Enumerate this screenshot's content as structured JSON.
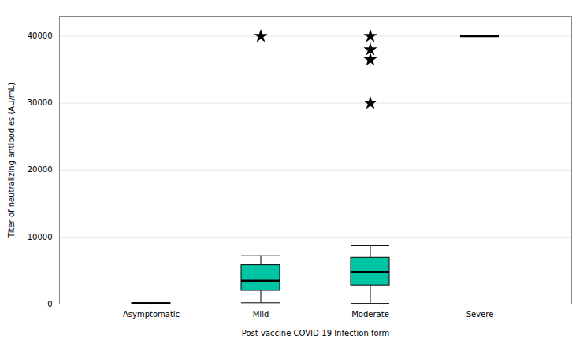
{
  "chart_data": {
    "type": "box",
    "categories": [
      "Asymptomatic",
      "Mild",
      "Moderate",
      "Severe"
    ],
    "boxes": [
      {
        "whislo": 0,
        "q1": 0,
        "med": 100,
        "q3": 150,
        "whishi": 200,
        "fliers": []
      },
      {
        "whislo": 200,
        "q1": 2000,
        "med": 3500,
        "q3": 5800,
        "whishi": 7200,
        "fliers": [
          40000
        ]
      },
      {
        "whislo": 100,
        "q1": 2800,
        "med": 4800,
        "q3": 6900,
        "whishi": 8700,
        "fliers": [
          30000,
          36500,
          38000,
          40000
        ]
      },
      {
        "whislo": 40000,
        "q1": 40000,
        "med": 40000,
        "q3": 40000,
        "whishi": 40000,
        "fliers": []
      }
    ],
    "color": "#00C5A5",
    "marker": "star",
    "xlabel": "Post-vaccine COVID-19 Infection form",
    "ylabel": "Titer of neutralizing antibodies (AU/mL)",
    "ylim": [
      0,
      43000
    ],
    "yticks": [
      0,
      10000,
      20000,
      30000,
      40000
    ],
    "grid": true
  }
}
